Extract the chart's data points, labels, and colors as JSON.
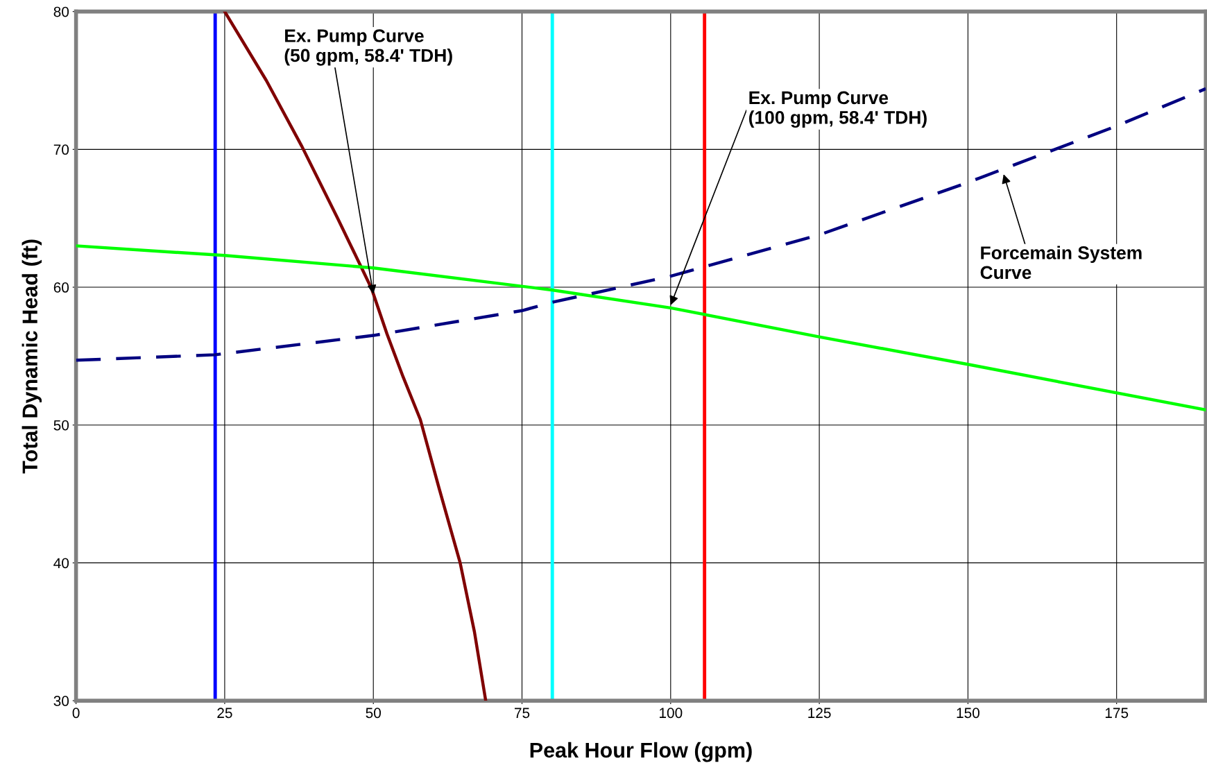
{
  "chart_data": {
    "type": "line",
    "xlabel": "Peak Hour Flow (gpm)",
    "ylabel": "Total Dynamic Head (ft)",
    "xlim": [
      0,
      190
    ],
    "xticks": [
      0,
      25,
      50,
      75,
      100,
      125,
      150,
      175
    ],
    "ylim": [
      30,
      80
    ],
    "yticks": [
      30,
      40,
      50,
      60,
      70,
      80
    ],
    "grid": true,
    "marker": "none",
    "series": [
      {
        "color": "#800000",
        "line_style": "solid",
        "x": [
          25,
          32,
          38,
          44,
          49.7,
          52.3,
          55,
          57.9,
          61,
          64.6,
          67,
          68.9
        ],
        "values": [
          80,
          75,
          70.2,
          65,
          59.9,
          56.6,
          53.5,
          50.4,
          45.5,
          40.0,
          35,
          30
        ]
      },
      {
        "color": "#00ff00",
        "line_style": "solid",
        "x": [
          0,
          25,
          50,
          80,
          100,
          125,
          150,
          190
        ],
        "values": [
          63.0,
          62.3,
          61.4,
          59.8,
          58.5,
          56.4,
          54.4,
          51.1
        ]
      },
      {
        "color": "#000080",
        "line_style": "dashed",
        "x": [
          0,
          23.4,
          50,
          75,
          80,
          100,
          125,
          150,
          175,
          190
        ],
        "values": [
          54.7,
          55.1,
          56.5,
          58.3,
          58.9,
          60.8,
          63.8,
          67.6,
          71.7,
          74.4
        ]
      }
    ],
    "ref_lines": [
      {
        "axis": "x",
        "value": 23.4,
        "color": "#0000ff"
      },
      {
        "axis": "x",
        "value": 80.1,
        "color": "#00ffff"
      },
      {
        "axis": "x",
        "value": 105.7,
        "color": "#ff0000"
      }
    ],
    "annotations": [
      {
        "text": "Ex. Pump Curve\n(50 gpm, 58.4' TDH)",
        "x": 50,
        "y": 59.5
      },
      {
        "text": "Ex. Pump Curve\n(100 gpm, 58.4' TDH)",
        "x": 100,
        "y": 58.7
      },
      {
        "text": "Forcemain System\nCurve",
        "x": 156,
        "y": 68.2
      }
    ]
  }
}
